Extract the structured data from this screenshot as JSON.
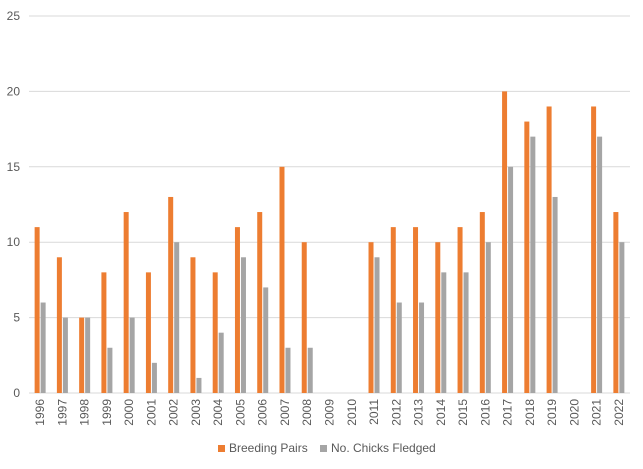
{
  "chart_data": {
    "type": "bar",
    "categories": [
      "1996",
      "1997",
      "1998",
      "1999",
      "2000",
      "2001",
      "2002",
      "2003",
      "2004",
      "2005",
      "2006",
      "2007",
      "2008",
      "2009",
      "2010",
      "2011",
      "2012",
      "2013",
      "2014",
      "2015",
      "2016",
      "2017",
      "2018",
      "2019",
      "2020",
      "2021",
      "2022"
    ],
    "series": [
      {
        "name": "Breeding Pairs",
        "color": "#ED7D31",
        "values": [
          11,
          9,
          5,
          8,
          12,
          8,
          13,
          9,
          8,
          11,
          12,
          15,
          10,
          0,
          0,
          10,
          11,
          11,
          10,
          11,
          12,
          20,
          18,
          19,
          0,
          19,
          12
        ]
      },
      {
        "name": "No. Chicks Fledged",
        "color": "#A5A5A5",
        "values": [
          6,
          5,
          5,
          3,
          5,
          2,
          10,
          1,
          4,
          9,
          7,
          3,
          3,
          0,
          0,
          9,
          6,
          6,
          8,
          8,
          10,
          15,
          17,
          13,
          0,
          17,
          10
        ]
      }
    ],
    "yticks": [
      "0",
      "5",
      "10",
      "15",
      "20",
      "25"
    ],
    "ylim": [
      0,
      25
    ],
    "grid": "horizontal",
    "legend": "bottom-center",
    "title": "",
    "xlabel": "",
    "ylabel": ""
  }
}
